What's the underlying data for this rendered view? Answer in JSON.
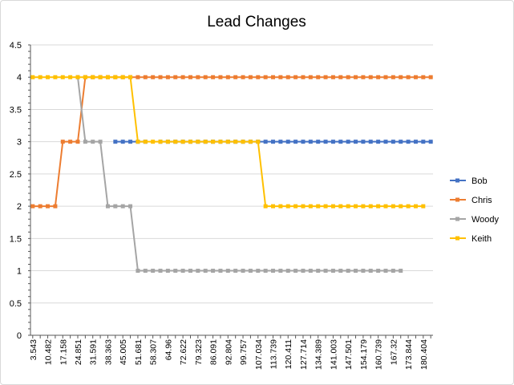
{
  "chart_data": {
    "type": "line",
    "title": "Lead Changes",
    "xlabel": "",
    "ylabel": "",
    "ylim": [
      0,
      4.5
    ],
    "yticks": [
      "0",
      "0.5",
      "1",
      "1.5",
      "2",
      "2.5",
      "3",
      "3.5",
      "4",
      "4.5"
    ],
    "grid": true,
    "legend_position": "right",
    "x_tick_labels": [
      "3.543",
      "10.482",
      "17.158",
      "24.851",
      "31.591",
      "38.363",
      "45.005",
      "51.681",
      "58.307",
      "64.96",
      "72.622",
      "79.323",
      "86.091",
      "92.804",
      "99.757",
      "107.034",
      "113.739",
      "120.411",
      "127.714",
      "134.389",
      "141.003",
      "147.501",
      "154.179",
      "160.739",
      "167.32",
      "173.844",
      "180.404"
    ],
    "series": [
      {
        "name": "Bob",
        "color": "#4472c4",
        "values": [
          null,
          null,
          null,
          null,
          null,
          null,
          null,
          null,
          null,
          null,
          null,
          3,
          3,
          3,
          3,
          3,
          null,
          3,
          3,
          3,
          3,
          3,
          3,
          3,
          3,
          3,
          3,
          3,
          3,
          3,
          3,
          3,
          3,
          3,
          3,
          3,
          3,
          3,
          3,
          3,
          3,
          3,
          3,
          3,
          3,
          3,
          3,
          3,
          3,
          3,
          3,
          3,
          3,
          3
        ]
      },
      {
        "name": "Chris",
        "color": "#ed7d31",
        "values": [
          2,
          2,
          2,
          2,
          3,
          3,
          3,
          4,
          4,
          4,
          4,
          4,
          4,
          4,
          4,
          4,
          4,
          4,
          4,
          4,
          4,
          4,
          4,
          4,
          4,
          4,
          4,
          4,
          4,
          4,
          4,
          4,
          4,
          4,
          4,
          4,
          4,
          4,
          4,
          4,
          4,
          4,
          4,
          4,
          4,
          4,
          4,
          4,
          4,
          4,
          4,
          4,
          4,
          4
        ]
      },
      {
        "name": "Woody",
        "color": "#a5a5a5",
        "values": [
          null,
          null,
          null,
          null,
          null,
          null,
          4,
          3,
          3,
          3,
          2,
          2,
          2,
          2,
          1,
          1,
          1,
          1,
          1,
          1,
          1,
          1,
          1,
          1,
          1,
          1,
          1,
          1,
          1,
          1,
          1,
          1,
          1,
          1,
          1,
          1,
          1,
          1,
          1,
          1,
          1,
          1,
          1,
          1,
          1,
          1,
          1,
          1,
          1,
          1,
          null,
          null,
          null,
          null
        ]
      },
      {
        "name": "Keith",
        "color": "#ffc000",
        "values": [
          4,
          4,
          4,
          4,
          4,
          4,
          4,
          4,
          4,
          4,
          4,
          4,
          4,
          4,
          3,
          3,
          3,
          3,
          3,
          3,
          3,
          3,
          3,
          3,
          3,
          3,
          3,
          3,
          3,
          3,
          3,
          2,
          2,
          2,
          2,
          2,
          2,
          2,
          2,
          2,
          2,
          2,
          2,
          2,
          2,
          2,
          2,
          2,
          2,
          2,
          2,
          2,
          2,
          null
        ]
      }
    ]
  }
}
